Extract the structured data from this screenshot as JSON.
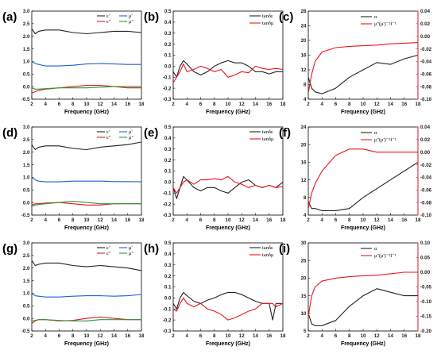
{
  "panels": [
    {
      "letter": "(a)",
      "type": "perm",
      "xlabel": "Frequency (GHz)",
      "yticks": [
        "-0.5",
        "0.0",
        "0.5",
        "1.0",
        "1.5",
        "2.0",
        "2.5",
        "3.0"
      ],
      "ylim": [
        -0.5,
        3.0
      ],
      "legend": [
        "ε'",
        "μ'",
        "ε''",
        "μ''"
      ]
    },
    {
      "letter": "(b)",
      "type": "tan",
      "xlabel": "Frequency (GHz)",
      "yticks": [
        "-0.3",
        "-0.2",
        "-0.1",
        "0.0",
        "0.1",
        "0.2",
        "0.3",
        "0.4",
        "0.5"
      ],
      "ylim": [
        -0.3,
        0.5
      ],
      "legend": [
        "tanδε",
        "tanδμ"
      ]
    },
    {
      "letter": "(c)",
      "type": "alpha",
      "xlabel": "Frequency (GHz)",
      "yticks": [
        "4",
        "8",
        "12",
        "16",
        "20",
        "24",
        "28"
      ],
      "ylim": [
        4,
        28
      ],
      "y2ticks": [
        "-0.10",
        "-0.08",
        "-0.06",
        "-0.04",
        "-0.02",
        "0.00",
        "0.02",
        "0.04"
      ],
      "y2lim": [
        -0.1,
        0.04
      ],
      "legend": [
        "α",
        "μ''(μ')⁻²f⁻¹"
      ]
    },
    {
      "letter": "(d)",
      "type": "perm",
      "xlabel": "Frequency (GHz)",
      "yticks": [
        "-0.5",
        "0.0",
        "0.5",
        "1.0",
        "1.5",
        "2.0",
        "2.5",
        "3.0"
      ],
      "ylim": [
        -0.5,
        3.0
      ],
      "legend": [
        "ε'",
        "μ'",
        "ε''",
        "μ''"
      ]
    },
    {
      "letter": "(e)",
      "type": "tan",
      "xlabel": "Frequency (GHz)",
      "yticks": [
        "-0.3",
        "-0.2",
        "-0.1",
        "0.0",
        "0.1",
        "0.2",
        "0.3",
        "0.4",
        "0.5"
      ],
      "ylim": [
        -0.3,
        0.5
      ],
      "legend": [
        "tanδε",
        "tanδμ"
      ]
    },
    {
      "letter": "(f)",
      "type": "alpha",
      "xlabel": "Frequency (GHz)",
      "yticks": [
        "4",
        "8",
        "12",
        "16",
        "20",
        "24"
      ],
      "ylim": [
        4,
        24
      ],
      "y2ticks": [
        "-0.10",
        "-0.08",
        "-0.06",
        "-0.04",
        "-0.02",
        "0.00",
        "0.02",
        "0.04"
      ],
      "y2lim": [
        -0.1,
        0.04
      ],
      "legend": [
        "α",
        "μ''(μ')⁻²f⁻¹"
      ]
    },
    {
      "letter": "(g)",
      "type": "perm",
      "xlabel": "Frequency (GHz)",
      "yticks": [
        "-0.5",
        "0.0",
        "0.5",
        "1.0",
        "1.5",
        "2.0",
        "2.5",
        "3.0"
      ],
      "ylim": [
        -0.5,
        3.0
      ],
      "legend": [
        "ε'",
        "μ'",
        "ε''",
        "μ''"
      ]
    },
    {
      "letter": "(h)",
      "type": "tan",
      "xlabel": "Frequency (GHz)",
      "yticks": [
        "-0.3",
        "-0.2",
        "-0.1",
        "0.0",
        "0.1",
        "0.2",
        "0.3",
        "0.4",
        "0.5"
      ],
      "ylim": [
        -0.3,
        0.5
      ],
      "legend": [
        "tanδε",
        "tanδμ"
      ]
    },
    {
      "letter": "(i)",
      "type": "alpha",
      "xlabel": "Frequency (GHz)",
      "yticks": [
        "5",
        "10",
        "15",
        "20",
        "25",
        "30"
      ],
      "ylim": [
        5,
        30
      ],
      "y2ticks": [
        "-0.20",
        "-0.15",
        "-0.10",
        "-0.05",
        "0.00",
        "0.05",
        "0.10"
      ],
      "y2lim": [
        -0.2,
        0.1
      ],
      "legend": [
        "α",
        "μ''(μ')⁻²f⁻¹"
      ]
    }
  ],
  "xticks": [
    "2",
    "4",
    "6",
    "8",
    "10",
    "12",
    "14",
    "16",
    "18"
  ],
  "xlim": [
    2,
    18
  ],
  "colors": {
    "black": "#222222",
    "red": "#e8161b",
    "blue": "#1f5fd6",
    "green": "#2a9a3a"
  },
  "chart_data": [
    {
      "panel": "a",
      "type": "line",
      "x": [
        2,
        2.5,
        3,
        4,
        6,
        8,
        10,
        12,
        14,
        16,
        18
      ],
      "series": [
        {
          "name": "ε'",
          "values": [
            2.3,
            2.1,
            2.2,
            2.25,
            2.25,
            2.15,
            2.1,
            2.15,
            2.2,
            2.2,
            2.15
          ]
        },
        {
          "name": "μ'",
          "values": [
            1.0,
            0.92,
            0.88,
            0.82,
            0.82,
            0.85,
            0.9,
            0.92,
            0.9,
            0.88,
            0.88
          ]
        },
        {
          "name": "ε''",
          "values": [
            -0.25,
            -0.2,
            -0.15,
            -0.1,
            -0.05,
            0.0,
            0.05,
            0.05,
            0.0,
            -0.05,
            -0.05
          ]
        },
        {
          "name": "μ''",
          "values": [
            -0.05,
            -0.1,
            -0.1,
            -0.08,
            -0.05,
            -0.05,
            -0.05,
            -0.02,
            0.0,
            0.0,
            0.0
          ]
        }
      ]
    },
    {
      "panel": "b",
      "type": "line",
      "x": [
        2,
        2.5,
        3,
        3.5,
        4,
        5,
        6,
        7,
        8,
        9,
        10,
        11,
        12,
        13,
        14,
        15,
        16,
        17,
        18
      ],
      "series": [
        {
          "name": "tanδε",
          "values": [
            -0.05,
            -0.1,
            0.0,
            0.05,
            0.02,
            -0.05,
            -0.08,
            -0.05,
            0.0,
            0.03,
            0.05,
            0.03,
            0.03,
            0.0,
            -0.05,
            -0.05,
            -0.07,
            -0.05,
            -0.05
          ]
        },
        {
          "name": "tanδμ",
          "values": [
            -0.15,
            -0.1,
            -0.05,
            0.02,
            -0.05,
            -0.03,
            0.0,
            -0.02,
            -0.05,
            -0.03,
            -0.1,
            -0.08,
            -0.05,
            -0.06,
            0.0,
            -0.02,
            -0.03,
            -0.02,
            -0.03
          ]
        }
      ]
    },
    {
      "panel": "c",
      "type": "line",
      "x": [
        2,
        2.5,
        3,
        4,
        6,
        8,
        10,
        12,
        14,
        16,
        18
      ],
      "series": [
        {
          "name": "α",
          "axis": "left",
          "values": [
            10,
            7,
            6,
            5.5,
            7,
            10,
            12,
            14,
            13.5,
            15,
            16
          ]
        },
        {
          "name": "μ''(μ')⁻²f⁻¹",
          "axis": "right",
          "values": [
            -0.09,
            -0.06,
            -0.04,
            -0.025,
            -0.018,
            -0.016,
            -0.015,
            -0.014,
            -0.012,
            -0.011,
            -0.01
          ]
        }
      ]
    },
    {
      "panel": "d",
      "type": "line",
      "x": [
        2,
        2.5,
        3,
        4,
        6,
        8,
        10,
        12,
        14,
        16,
        18
      ],
      "series": [
        {
          "name": "ε'",
          "values": [
            2.3,
            2.1,
            2.2,
            2.25,
            2.25,
            2.15,
            2.1,
            2.2,
            2.25,
            2.3,
            2.4
          ]
        },
        {
          "name": "μ'",
          "values": [
            1.0,
            0.9,
            0.85,
            0.82,
            0.82,
            0.85,
            0.85,
            0.85,
            0.83,
            0.83,
            0.82
          ]
        },
        {
          "name": "ε''",
          "values": [
            -0.1,
            -0.05,
            -0.05,
            -0.02,
            0.0,
            -0.05,
            -0.1,
            -0.1,
            -0.05,
            -0.05,
            -0.05
          ]
        },
        {
          "name": "μ''",
          "values": [
            -0.15,
            -0.1,
            -0.08,
            -0.05,
            0.0,
            0.05,
            0.0,
            -0.05,
            -0.05,
            -0.05,
            -0.05
          ]
        }
      ]
    },
    {
      "panel": "e",
      "type": "line",
      "x": [
        2,
        2.5,
        3,
        3.5,
        4,
        5,
        6,
        7,
        8,
        9,
        10,
        11,
        12,
        13,
        14,
        15,
        16,
        17,
        18
      ],
      "series": [
        {
          "name": "tanδε",
          "values": [
            -0.05,
            -0.15,
            -0.05,
            0.05,
            0.02,
            -0.05,
            -0.08,
            -0.05,
            -0.05,
            -0.08,
            -0.1,
            -0.05,
            0.0,
            0.02,
            -0.03,
            -0.05,
            -0.03,
            -0.05,
            0.0
          ]
        },
        {
          "name": "tanδμ",
          "values": [
            -0.05,
            -0.1,
            -0.05,
            0.0,
            0.02,
            -0.02,
            0.02,
            0.02,
            0.03,
            0.02,
            0.05,
            0.0,
            -0.02,
            -0.05,
            -0.03,
            -0.05,
            -0.03,
            -0.05,
            -0.04
          ]
        }
      ]
    },
    {
      "panel": "f",
      "type": "line",
      "x": [
        2,
        2.5,
        3,
        4,
        6,
        8,
        10,
        12,
        14,
        16,
        18
      ],
      "series": [
        {
          "name": "α",
          "axis": "left",
          "values": [
            7,
            5.5,
            5.5,
            5,
            5,
            5.5,
            8,
            10,
            12,
            14,
            16
          ]
        },
        {
          "name": "μ''(μ')⁻²f⁻¹",
          "axis": "right",
          "values": [
            -0.09,
            -0.065,
            -0.05,
            -0.03,
            -0.005,
            0.005,
            0.005,
            0.0,
            0.0,
            0.0,
            0.0
          ]
        }
      ]
    },
    {
      "panel": "g",
      "type": "line",
      "x": [
        2,
        2.5,
        3,
        4,
        6,
        8,
        10,
        12,
        14,
        16,
        18
      ],
      "series": [
        {
          "name": "ε'",
          "values": [
            2.3,
            2.1,
            2.15,
            2.2,
            2.2,
            2.1,
            2.05,
            2.1,
            2.05,
            2.0,
            1.9
          ]
        },
        {
          "name": "μ'",
          "values": [
            1.0,
            0.9,
            0.88,
            0.85,
            0.85,
            0.88,
            0.9,
            0.9,
            0.88,
            0.9,
            0.95
          ]
        },
        {
          "name": "ε''",
          "values": [
            -0.2,
            -0.1,
            -0.05,
            -0.05,
            -0.1,
            -0.08,
            0.0,
            0.05,
            0.0,
            -0.05,
            -0.05
          ]
        },
        {
          "name": "μ''",
          "values": [
            -0.1,
            -0.08,
            -0.05,
            -0.05,
            -0.08,
            -0.1,
            -0.1,
            -0.05,
            -0.05,
            -0.05,
            -0.05
          ]
        }
      ]
    },
    {
      "panel": "h",
      "type": "line",
      "x": [
        2,
        2.5,
        3,
        3.5,
        4,
        5,
        6,
        7,
        8,
        9,
        10,
        11,
        12,
        13,
        14,
        15,
        16,
        16.5,
        17,
        18
      ],
      "series": [
        {
          "name": "tanδε",
          "values": [
            -0.05,
            -0.1,
            0.0,
            0.05,
            0.02,
            -0.03,
            -0.05,
            -0.02,
            0.0,
            0.03,
            0.05,
            0.05,
            0.03,
            0.0,
            -0.03,
            -0.05,
            -0.05,
            -0.2,
            -0.05,
            -0.05
          ]
        },
        {
          "name": "tanδμ",
          "values": [
            -0.1,
            -0.12,
            -0.05,
            0.0,
            -0.05,
            -0.08,
            -0.05,
            -0.1,
            -0.12,
            -0.15,
            -0.2,
            -0.18,
            -0.15,
            -0.12,
            -0.1,
            -0.05,
            -0.05,
            -0.05,
            -0.08,
            -0.05
          ]
        }
      ]
    },
    {
      "panel": "i",
      "type": "line",
      "x": [
        2,
        2.5,
        3,
        4,
        6,
        8,
        10,
        12,
        14,
        16,
        18
      ],
      "series": [
        {
          "name": "α",
          "axis": "left",
          "values": [
            10,
            7,
            6.5,
            6.5,
            8,
            12,
            15,
            17,
            16,
            15,
            15
          ]
        },
        {
          "name": "μ''(μ')⁻²f⁻¹",
          "axis": "right",
          "values": [
            -0.15,
            -0.08,
            -0.05,
            -0.03,
            -0.02,
            -0.015,
            -0.012,
            -0.01,
            -0.005,
            0.0,
            0.0
          ]
        }
      ]
    }
  ]
}
